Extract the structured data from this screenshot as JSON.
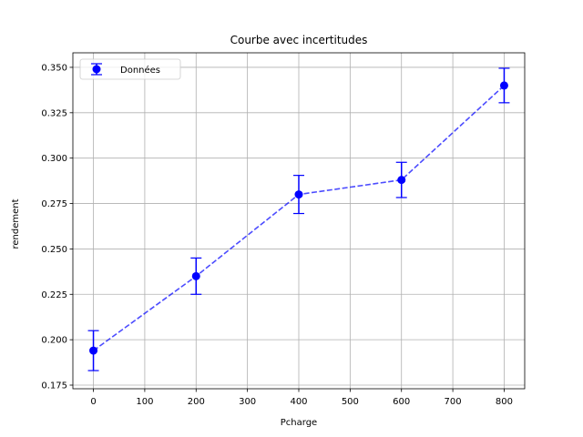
{
  "chart_data": {
    "type": "line",
    "title": "Courbe avec incertitudes",
    "xlabel": "Pcharge",
    "ylabel": "rendement",
    "xlim": [
      -40,
      840
    ],
    "ylim": [
      0.173,
      0.358
    ],
    "xticks": [
      0,
      100,
      200,
      300,
      400,
      500,
      600,
      700,
      800
    ],
    "yticks": [
      0.175,
      0.2,
      0.225,
      0.25,
      0.275,
      0.3,
      0.325,
      0.35
    ],
    "xtick_labels": [
      "0",
      "100",
      "200",
      "300",
      "400",
      "500",
      "600",
      "700",
      "800"
    ],
    "ytick_labels": [
      "0.175",
      "0.200",
      "0.225",
      "0.250",
      "0.275",
      "0.300",
      "0.325",
      "0.350"
    ],
    "grid": true,
    "legend_position": "top-left",
    "series": [
      {
        "name": "Données",
        "x": [
          0,
          200,
          400,
          600,
          800
        ],
        "y": [
          0.194,
          0.235,
          0.28,
          0.288,
          0.34
        ],
        "yerr": [
          0.011,
          0.01,
          0.0105,
          0.0097,
          0.0095
        ],
        "color": "#0000ff",
        "line_style": "dashed"
      }
    ]
  }
}
